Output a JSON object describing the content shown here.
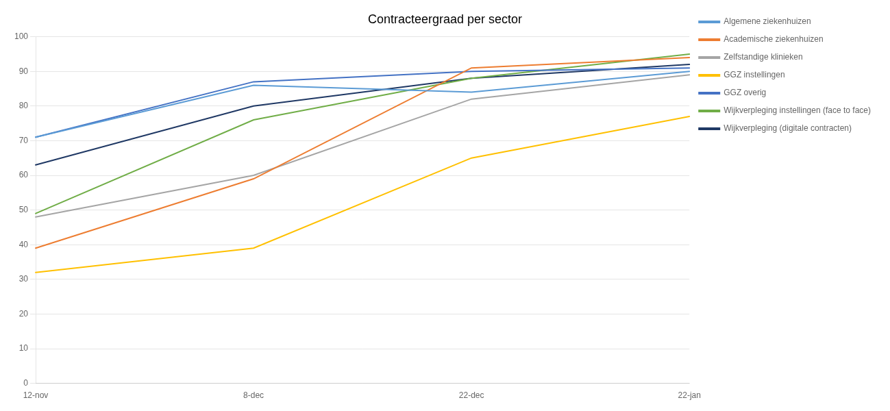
{
  "chart_data": {
    "type": "line",
    "title": "Contracteergraad per sector",
    "categories": [
      "12-nov",
      "8-dec",
      "22-dec",
      "22-jan"
    ],
    "series": [
      {
        "name": "Algemene ziekenhuizen",
        "color": "#5B9BD5",
        "values": [
          71,
          86,
          84,
          90
        ]
      },
      {
        "name": "Academische ziekenhuizen",
        "color": "#ED7D31",
        "values": [
          39,
          59,
          91,
          94
        ]
      },
      {
        "name": "Zelfstandige klinieken",
        "color": "#A5A5A5",
        "values": [
          48,
          60,
          82,
          89
        ]
      },
      {
        "name": "GGZ instellingen",
        "color": "#FFC000",
        "values": [
          32,
          39,
          65,
          77
        ]
      },
      {
        "name": "GGZ overig",
        "color": "#4472C4",
        "values": [
          71,
          87,
          90,
          91
        ]
      },
      {
        "name": "Wijkverpleging instellingen (face to face)",
        "color": "#70AD47",
        "values": [
          49,
          76,
          88,
          95
        ]
      },
      {
        "name": "Wijkverpleging (digitale contracten)",
        "color": "#1F3864",
        "values": [
          63,
          80,
          88,
          92
        ]
      }
    ],
    "ylim": [
      0,
      100
    ],
    "yticks": [
      0,
      10,
      20,
      30,
      40,
      50,
      60,
      70,
      80,
      90,
      100
    ],
    "grid": true,
    "legend": "right"
  }
}
